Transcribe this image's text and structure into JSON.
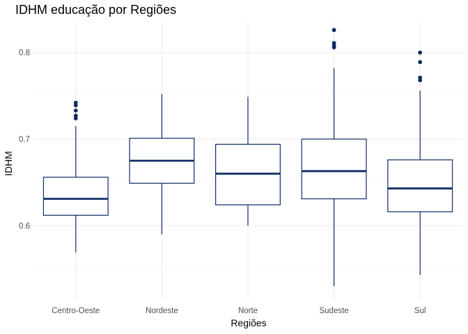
{
  "chart_data": {
    "type": "boxplot",
    "title": "IDHM educação por Regiões",
    "xlabel": "Regiões",
    "ylabel": "IDHM",
    "ylim": [
      0.515,
      0.835
    ],
    "yticks": [
      0.6,
      0.7,
      0.8
    ],
    "ytick_labels": [
      "0.6",
      "0.7",
      "0.8"
    ],
    "grid": true,
    "colors": {
      "box": "#0d2a66",
      "outlier": "#0d2a66",
      "grid": "#ebebeb",
      "label": "#4d4d4d"
    },
    "categories": [
      "Centro-Oeste",
      "Nordeste",
      "Norte",
      "Sudeste",
      "Sul"
    ],
    "boxes": [
      {
        "category": "Centro-Oeste",
        "whisker_low": 0.569,
        "q1": 0.612,
        "median": 0.631,
        "q3": 0.656,
        "whisker_high": 0.715,
        "outliers": [
          0.724,
          0.727,
          0.733,
          0.739,
          0.742
        ]
      },
      {
        "category": "Nordeste",
        "whisker_low": 0.59,
        "q1": 0.649,
        "median": 0.675,
        "q3": 0.701,
        "whisker_high": 0.752,
        "outliers": []
      },
      {
        "category": "Norte",
        "whisker_low": 0.6,
        "q1": 0.624,
        "median": 0.66,
        "q3": 0.694,
        "whisker_high": 0.749,
        "outliers": []
      },
      {
        "category": "Sudeste",
        "whisker_low": 0.53,
        "q1": 0.631,
        "median": 0.663,
        "q3": 0.7,
        "whisker_high": 0.782,
        "outliers": [
          0.806,
          0.808,
          0.811,
          0.826
        ]
      },
      {
        "category": "Sul",
        "whisker_low": 0.543,
        "q1": 0.616,
        "median": 0.643,
        "q3": 0.676,
        "whisker_high": 0.756,
        "outliers": [
          0.768,
          0.771,
          0.789,
          0.8
        ]
      }
    ]
  }
}
